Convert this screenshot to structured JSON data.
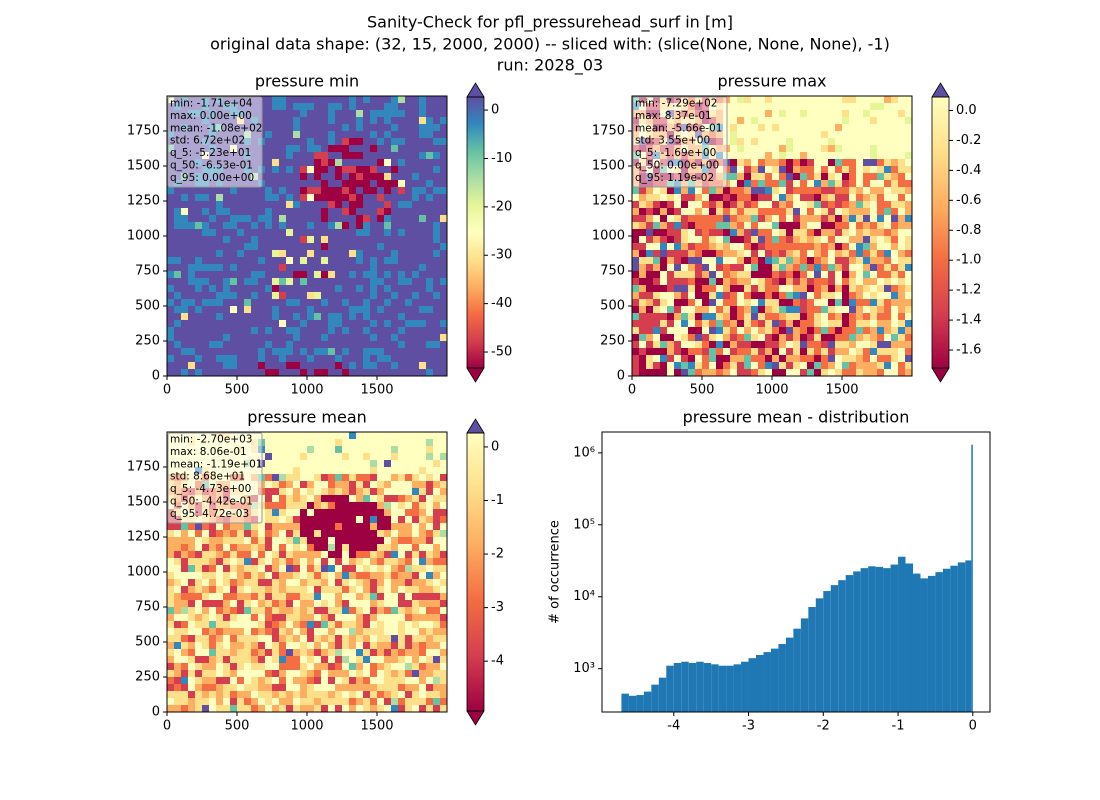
{
  "figure": {
    "title": [
      "Sanity-Check for pfl_pressurehead_surf in [m]",
      "original data shape: (32, 15, 2000, 2000) -- sliced with: (slice(None, None, None), -1)",
      "run: 2028_03"
    ]
  },
  "chart_data": [
    {
      "type": "image",
      "title": "pressure min",
      "xlim": [
        0,
        2000
      ],
      "ylim": [
        0,
        2000
      ],
      "xticks": [
        0,
        500,
        1000,
        1500
      ],
      "yticks": [
        0,
        250,
        500,
        750,
        1000,
        1250,
        1500,
        1750
      ],
      "stats": [
        "min: -1.71e+04",
        "max: 0.00e+00",
        "mean: -1.08e+02",
        "std: 6.72e+02",
        "q_5: -5.23e+01",
        "q_50: -6.53e-01",
        "q_95: 0.00e+00"
      ],
      "colorbar": {
        "lim": [
          -53.3,
          2.7
        ],
        "ticks": [
          -50,
          -40,
          -30,
          -20,
          -10,
          0
        ],
        "colors": [
          "#9e0142",
          "#d53e4f",
          "#f46d43",
          "#fdae61",
          "#fee08b",
          "#ffffbf",
          "#e6f598",
          "#abdda4",
          "#66c2a5",
          "#3288bd",
          "#5e4fa2"
        ],
        "under": "#9e0142",
        "over": "#5e4fa2"
      }
    },
    {
      "type": "image",
      "title": "pressure max",
      "xlim": [
        0,
        2000
      ],
      "ylim": [
        0,
        2000
      ],
      "xticks": [
        0,
        500,
        1000,
        1500
      ],
      "yticks": [
        0,
        250,
        500,
        750,
        1000,
        1250,
        1500,
        1750
      ],
      "stats": [
        "min: -7.29e+02",
        "max: 8.37e-01",
        "mean: -5.66e-01",
        "std: 3.55e+00",
        "q_5: -1.69e+00",
        "q_50: 0.00e+00",
        "q_95: 1.19e-02"
      ],
      "colorbar": {
        "lim": [
          -1.72,
          0.09
        ],
        "ticks": [
          {
            "value": 0,
            "label": "0.0"
          },
          -0.2,
          -0.4,
          -0.6,
          -0.8,
          {
            "value": -1,
            "label": "-1.0"
          },
          -1.2,
          -1.4,
          -1.6
        ],
        "colors": [
          "#9e0142",
          "#d53e4f",
          "#f46d43",
          "#fdae61",
          "#fee08b",
          "#ffffbf"
        ],
        "under": "#9e0142",
        "over": "#5e4fa2"
      }
    },
    {
      "type": "image",
      "title": "pressure mean",
      "xlim": [
        0,
        2000
      ],
      "ylim": [
        0,
        2000
      ],
      "xticks": [
        0,
        500,
        1000,
        1500
      ],
      "yticks": [
        0,
        250,
        500,
        750,
        1000,
        1250,
        1500,
        1750
      ],
      "stats": [
        "min: -2.70e+03",
        "max: 8.06e-01",
        "mean: -1.19e+01",
        "std: 8.68e+01",
        "q_5: -4.73e+00",
        "q_50: -4.42e-01",
        "q_95: 4.72e-03"
      ],
      "colorbar": {
        "lim": [
          -4.93,
          0.26
        ],
        "ticks": [
          0,
          -1,
          -2,
          -3,
          -4
        ],
        "colors": [
          "#9e0142",
          "#d53e4f",
          "#f46d43",
          "#fdae61",
          "#fee08b",
          "#ffffbf"
        ],
        "under": "#9e0142",
        "over": "#5e4fa2"
      }
    },
    {
      "type": "histogram",
      "title": "pressure mean - distribution",
      "ylabel": "# of occurrence",
      "color": "#1f77b4",
      "log_y": true,
      "xlim": [
        -4.96,
        0.23
      ],
      "ylim": [
        250,
        1950000
      ],
      "xticks": [
        -4,
        -3,
        -2,
        -1,
        0
      ],
      "yticks": [
        {
          "value": 1000,
          "label": "10³"
        },
        {
          "value": 10000,
          "label": "10⁴"
        },
        {
          "value": 100000,
          "label": "10⁵"
        },
        {
          "value": 1000000,
          "label": "10⁶"
        }
      ],
      "bins": [
        -4.7,
        -4.6,
        -4.5,
        -4.4,
        -4.3,
        -4.2,
        -4.1,
        -4.0,
        -3.9,
        -3.8,
        -3.7,
        -3.6,
        -3.5,
        -3.4,
        -3.3,
        -3.2,
        -3.1,
        -3.0,
        -2.9,
        -2.8,
        -2.7,
        -2.6,
        -2.5,
        -2.4,
        -2.3,
        -2.2,
        -2.1,
        -2.0,
        -1.9,
        -1.8,
        -1.7,
        -1.6,
        -1.5,
        -1.4,
        -1.3,
        -1.2,
        -1.1,
        -1.0,
        -0.9,
        -0.8,
        -0.7,
        -0.6,
        -0.5,
        -0.4,
        -0.3,
        -0.2,
        -0.1,
        -0.02,
        0.0
      ],
      "counts": [
        450,
        420,
        430,
        480,
        600,
        750,
        1100,
        1200,
        1250,
        1200,
        1250,
        1200,
        1150,
        1100,
        1100,
        1150,
        1250,
        1400,
        1550,
        1700,
        1900,
        2200,
        2700,
        3600,
        5000,
        7200,
        9500,
        12000,
        14500,
        17000,
        20000,
        22500,
        25000,
        26500,
        26000,
        25000,
        28000,
        36000,
        29000,
        21000,
        18000,
        19500,
        22000,
        24500,
        27000,
        30000,
        32000,
        1300000
      ]
    }
  ]
}
